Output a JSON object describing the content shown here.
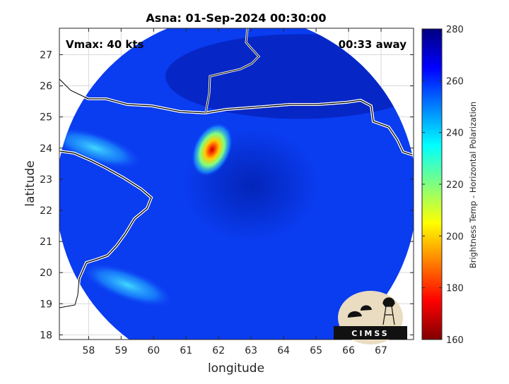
{
  "chart_data": {
    "type": "heatmap",
    "title": "Asna: 01-Sep-2024 00:30:00",
    "xlabel": "longitude",
    "ylabel": "latitude",
    "xlim": [
      57.1,
      68.0
    ],
    "ylim": [
      17.85,
      27.85
    ],
    "x_ticks": [
      58,
      59,
      60,
      61,
      62,
      63,
      64,
      65,
      66,
      67
    ],
    "y_ticks": [
      18,
      19,
      20,
      21,
      22,
      23,
      24,
      25,
      26,
      27
    ],
    "grid": true,
    "annotations": {
      "vmax": "Vmax: 40 kts",
      "time_away": "00:33 away"
    },
    "colorbar": {
      "label": "Brightness Temp - Horizontal Polarization",
      "range": [
        160,
        280
      ],
      "ticks": [
        160,
        180,
        200,
        220,
        240,
        260,
        280
      ],
      "colormap": "jet"
    },
    "swath": {
      "center_lon": 62.55,
      "center_lat": 22.5,
      "radius_lon": 5.55
    },
    "features": [
      {
        "name": "storm core",
        "lon": 61.8,
        "lat": 23.95,
        "value": 190
      },
      {
        "name": "coastal band (south)",
        "lon": 59.2,
        "lat": 19.6,
        "value": 245
      },
      {
        "name": "coastal band (north-west)",
        "lon": 58.2,
        "lat": 24.0,
        "value": 248
      }
    ],
    "background_value": 265
  },
  "logo": {
    "text": "CIMSS"
  }
}
